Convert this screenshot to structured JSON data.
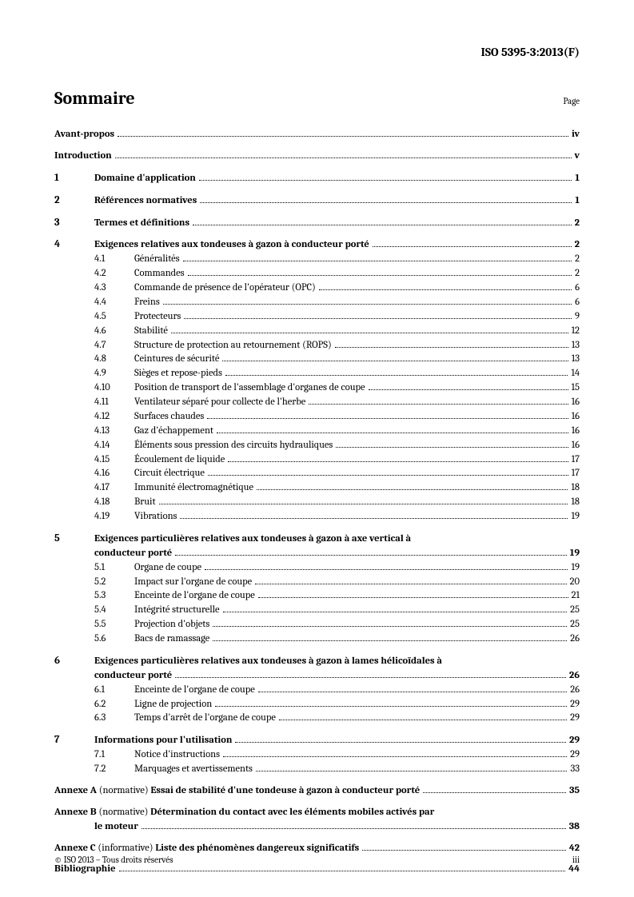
{
  "header": {
    "doc_id": "ISO 5395-3:2013(F)"
  },
  "title": "Sommaire",
  "page_label": "Page",
  "front": [
    {
      "label": "Avant-propos",
      "page": "iv"
    },
    {
      "label": "Introduction",
      "page": "v"
    }
  ],
  "sections": [
    {
      "num": "1",
      "title": "Domaine d'application",
      "page": "1",
      "subs": []
    },
    {
      "num": "2",
      "title": "Références normatives",
      "page": "1",
      "subs": []
    },
    {
      "num": "3",
      "title": "Termes et définitions",
      "page": "2",
      "subs": []
    },
    {
      "num": "4",
      "title": "Exigences relatives aux tondeuses à gazon à conducteur porté",
      "page": "2",
      "subs": [
        {
          "num": "4.1",
          "title": "Généralités",
          "page": "2"
        },
        {
          "num": "4.2",
          "title": "Commandes",
          "page": "2"
        },
        {
          "num": "4.3",
          "title": "Commande de présence de l'opérateur (OPC)",
          "page": "6"
        },
        {
          "num": "4.4",
          "title": "Freins",
          "page": "6"
        },
        {
          "num": "4.5",
          "title": "Protecteurs",
          "page": "9"
        },
        {
          "num": "4.6",
          "title": "Stabilité",
          "page": "12"
        },
        {
          "num": "4.7",
          "title": "Structure de protection au retournement (ROPS)",
          "page": "13"
        },
        {
          "num": "4.8",
          "title": "Ceintures de sécurité",
          "page": "13"
        },
        {
          "num": "4.9",
          "title": "Sièges et repose-pieds",
          "page": "14"
        },
        {
          "num": "4.10",
          "title": "Position de transport de l'assemblage d'organes de coupe",
          "page": "15"
        },
        {
          "num": "4.11",
          "title": "Ventilateur séparé pour collecte de l'herbe",
          "page": "16"
        },
        {
          "num": "4.12",
          "title": "Surfaces chaudes",
          "page": "16"
        },
        {
          "num": "4.13",
          "title": "Gaz d'échappement",
          "page": "16"
        },
        {
          "num": "4.14",
          "title": "Éléments sous pression des circuits hydrauliques",
          "page": "16"
        },
        {
          "num": "4.15",
          "title": "Écoulement de liquide",
          "page": "17"
        },
        {
          "num": "4.16",
          "title": "Circuit électrique",
          "page": "17"
        },
        {
          "num": "4.17",
          "title": "Immunité électromagnétique",
          "page": "18"
        },
        {
          "num": "4.18",
          "title": "Bruit",
          "page": "18"
        },
        {
          "num": "4.19",
          "title": "Vibrations",
          "page": "19"
        }
      ]
    },
    {
      "num": "5",
      "title_line1": "Exigences particulières relatives aux tondeuses à gazon à axe vertical à",
      "title_line2": "conducteur porté",
      "page": "19",
      "subs": [
        {
          "num": "5.1",
          "title": "Organe de coupe",
          "page": "19"
        },
        {
          "num": "5.2",
          "title": "Impact sur l'organe de coupe",
          "page": "20"
        },
        {
          "num": "5.3",
          "title": "Enceinte de l'organe de coupe",
          "page": "21"
        },
        {
          "num": "5.4",
          "title": "Intégrité structurelle",
          "page": "25"
        },
        {
          "num": "5.5",
          "title": "Projection d'objets",
          "page": "25"
        },
        {
          "num": "5.6",
          "title": "Bacs de ramassage",
          "page": "26"
        }
      ]
    },
    {
      "num": "6",
      "title_line1": "Exigences particulières relatives aux tondeuses à gazon à lames hélicoïdales à",
      "title_line2": "conducteur porté",
      "page": "26",
      "subs": [
        {
          "num": "6.1",
          "title": "Enceinte de l'organe de coupe",
          "page": "26"
        },
        {
          "num": "6.2",
          "title": "Ligne de projection",
          "page": "29"
        },
        {
          "num": "6.3",
          "title": "Temps d'arrêt de l'organe de coupe",
          "page": "29"
        }
      ]
    },
    {
      "num": "7",
      "title": "Informations pour l'utilisation",
      "page": "29",
      "subs": [
        {
          "num": "7.1",
          "title": "Notice d'instructions",
          "page": "29"
        },
        {
          "num": "7.2",
          "title": "Marquages et avertissements",
          "page": "33"
        }
      ]
    }
  ],
  "annexes": [
    {
      "lead": "Annexe A",
      "norm": "(normative)",
      "title": "Essai de stabilité d'une tondeuse à gazon à conducteur porté",
      "page": "35"
    },
    {
      "lead": "Annexe B",
      "norm": "(normative)",
      "title_line1": "Détermination du contact avec les éléments mobiles activés par",
      "title_line2": "le moteur",
      "page": "38"
    },
    {
      "lead": "Annexe C",
      "norm": "(informative)",
      "title": "Liste des phénomènes dangereux significatifs",
      "page": "42"
    }
  ],
  "biblio": {
    "label": "Bibliographie",
    "page": "44"
  },
  "footer": {
    "copyright": "© ISO 2013 – Tous droits réservés",
    "page_num": "iii"
  }
}
